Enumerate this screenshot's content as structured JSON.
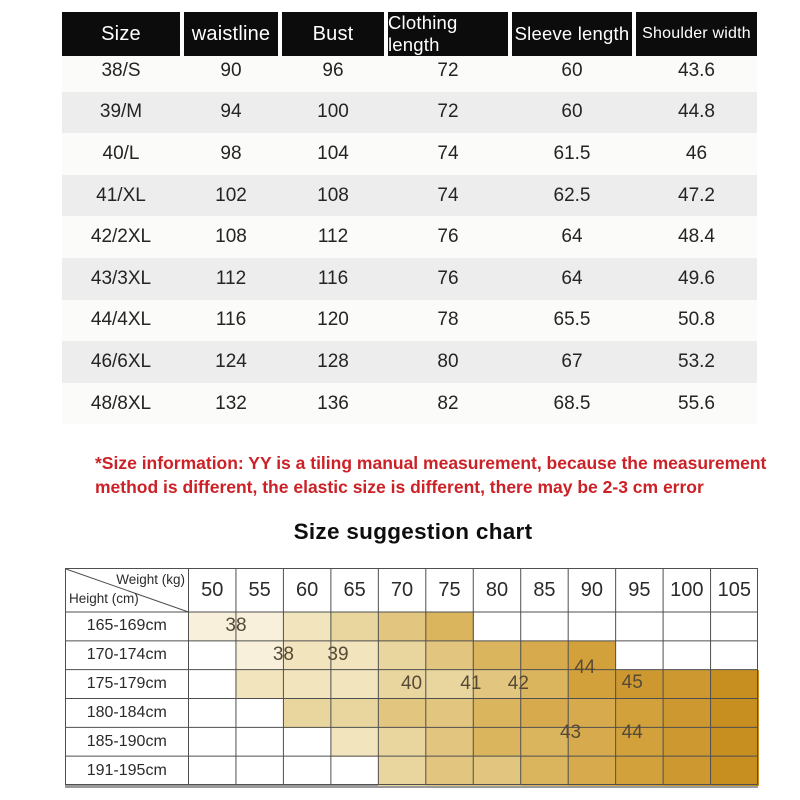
{
  "note": {
    "line1": "*Size information: YY is a tiling manual measurement, because the measurement",
    "line2": "method is different, the elastic size is different, there may be 2-3 cm error",
    "color": "#cb2127"
  },
  "chart_data": [
    {
      "type": "table",
      "title": "Garment measurements",
      "columns": [
        "Size",
        "waistline",
        "Bust",
        "Clothing length",
        "Sleeve length",
        "Shoulder width"
      ],
      "rows": [
        [
          "38/S",
          "90",
          "96",
          "72",
          "60",
          "43.6"
        ],
        [
          "39/M",
          "94",
          "100",
          "72",
          "60",
          "44.8"
        ],
        [
          "40/L",
          "98",
          "104",
          "74",
          "61.5",
          "46"
        ],
        [
          "41/XL",
          "102",
          "108",
          "74",
          "62.5",
          "47.2"
        ],
        [
          "42/2XL",
          "108",
          "112",
          "76",
          "64",
          "48.4"
        ],
        [
          "43/3XL",
          "112",
          "116",
          "76",
          "64",
          "49.6"
        ],
        [
          "44/4XL",
          "116",
          "120",
          "78",
          "65.5",
          "50.8"
        ],
        [
          "46/6XL",
          "124",
          "128",
          "80",
          "67",
          "53.2"
        ],
        [
          "48/8XL",
          "132",
          "136",
          "82",
          "68.5",
          "55.6"
        ]
      ],
      "header_bg": "#0c0c0c",
      "stripe_colors": [
        "#fbfbfa",
        "#ededee"
      ]
    },
    {
      "type": "heatmap",
      "title": "Size suggestion chart",
      "x_label": "Weight (kg)",
      "y_label": "Height (cm)",
      "x_ticks": [
        "50",
        "55",
        "60",
        "65",
        "70",
        "75",
        "80",
        "85",
        "90",
        "95",
        "100",
        "105"
      ],
      "y_ticks": [
        "165-169cm",
        "170-174cm",
        "175-179cm",
        "180-184cm",
        "185-190cm",
        "191-195cm"
      ],
      "palette": [
        "#ffffff",
        "#f8f0da",
        "#f2e4bc",
        "#e9d69e",
        "#e2c57e",
        "#dbb55e",
        "#d7ab4d",
        "#d2a13c",
        "#cd9830",
        "#c78e20"
      ],
      "cell_tones": [
        [
          1,
          1,
          2,
          3,
          4,
          5,
          0,
          0,
          0,
          0,
          0,
          0
        ],
        [
          0,
          1,
          2,
          2,
          3,
          4,
          5,
          6,
          7,
          0,
          0,
          0
        ],
        [
          0,
          2,
          2,
          2,
          3,
          3,
          4,
          5,
          7,
          8,
          8,
          9
        ],
        [
          0,
          0,
          3,
          3,
          4,
          4,
          5,
          6,
          6,
          7,
          8,
          9
        ],
        [
          0,
          0,
          0,
          2,
          3,
          4,
          5,
          5,
          6,
          7,
          8,
          9
        ],
        [
          0,
          0,
          0,
          0,
          3,
          4,
          4,
          5,
          6,
          7,
          8,
          9
        ]
      ],
      "size_labels": [
        {
          "text": "38",
          "u": 1.0,
          "v": 0.5
        },
        {
          "text": "38",
          "u": 2.0,
          "v": 1.5
        },
        {
          "text": "39",
          "u": 3.15,
          "v": 1.5
        },
        {
          "text": "40",
          "u": 4.7,
          "v": 2.5
        },
        {
          "text": "41",
          "u": 5.95,
          "v": 2.5
        },
        {
          "text": "42",
          "u": 6.95,
          "v": 2.5
        },
        {
          "text": "44",
          "u": 8.35,
          "v": 1.95
        },
        {
          "text": "45",
          "u": 9.35,
          "v": 2.45
        },
        {
          "text": "43",
          "u": 8.05,
          "v": 4.2
        },
        {
          "text": "44",
          "u": 9.35,
          "v": 4.2
        }
      ],
      "grid_color": "#4f4f4f"
    }
  ]
}
